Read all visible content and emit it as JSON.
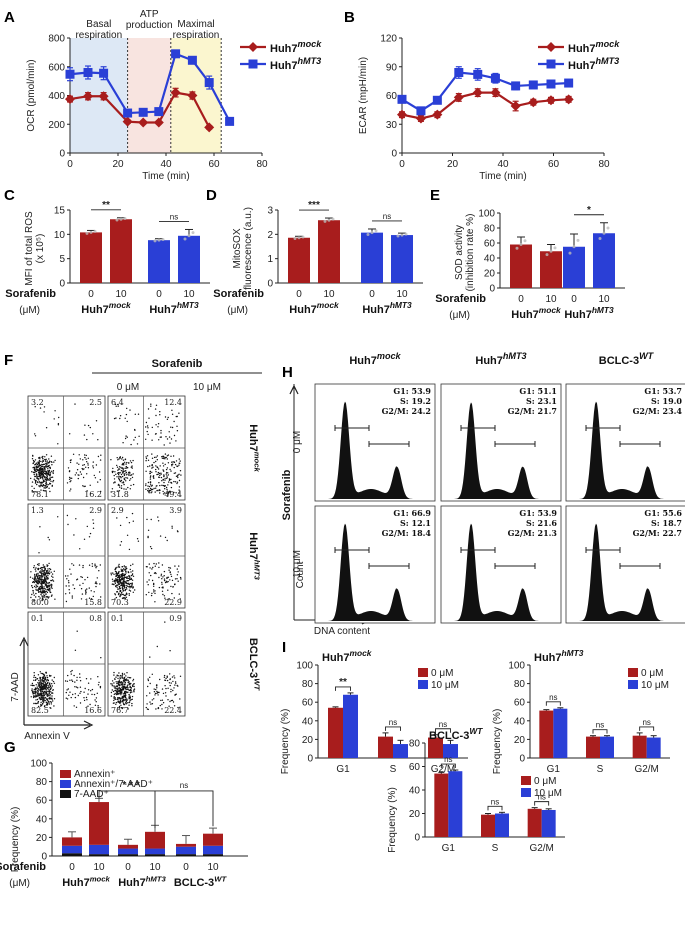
{
  "colors": {
    "mock": "#a81d1d",
    "hmt3": "#2a3fd6",
    "bclc": "#111111",
    "basal_bg": "#dde8f5",
    "atp_bg": "#f8e4e0",
    "max_bg": "#fbf6cf"
  },
  "panel_labels": [
    "A",
    "B",
    "C",
    "D",
    "E",
    "F",
    "G",
    "H",
    "I"
  ],
  "groups": {
    "mock": {
      "base": "Huh7",
      "sup": "mock"
    },
    "hmt3": {
      "base": "Huh7",
      "sup": "hMT3"
    },
    "bclc": {
      "base": "BCLC-3",
      "sup": "WT"
    }
  },
  "common": {
    "sorafenib": "Sorafenib",
    "unit": "(μM)",
    "dose0": "0",
    "dose10": "10"
  },
  "chart_data": [
    {
      "id": "A",
      "type": "line",
      "xlabel": "Time (min)",
      "ylabel": "OCR (pmol/min)",
      "xlim": [
        0,
        80
      ],
      "ylim": [
        0,
        800
      ],
      "xticks": [
        0,
        20,
        40,
        60,
        80
      ],
      "yticks": [
        0,
        200,
        400,
        600,
        800
      ],
      "regions": [
        {
          "label": "Basal\nrespiration",
          "from": 0,
          "to": 24,
          "color": "basal_bg"
        },
        {
          "label": "ATP\nproduction",
          "from": 24,
          "to": 42,
          "color": "atp_bg"
        },
        {
          "label": "Maximal\nrespiration",
          "from": 42,
          "to": 63,
          "color": "max_bg"
        }
      ],
      "series": [
        {
          "name": "mock",
          "x": [
            0,
            7.5,
            14,
            24,
            30.5,
            37,
            44,
            51,
            58
          ],
          "y": [
            375,
            395,
            395,
            218,
            212,
            212,
            420,
            400,
            178
          ],
          "err": [
            20,
            25,
            25,
            12,
            10,
            10,
            30,
            25,
            12
          ]
        },
        {
          "name": "hmt3",
          "x": [
            0,
            7.5,
            14,
            24,
            30.5,
            37,
            44,
            51,
            58,
            66.5
          ],
          "y": [
            548,
            560,
            555,
            278,
            283,
            288,
            690,
            645,
            490,
            220
          ],
          "err": [
            45,
            45,
            45,
            15,
            15,
            15,
            25,
            25,
            45,
            15
          ]
        }
      ]
    },
    {
      "id": "B",
      "type": "line",
      "xlabel": "Time (min)",
      "ylabel": "ECAR (mpH/min)",
      "xlim": [
        0,
        80
      ],
      "ylim": [
        0,
        120
      ],
      "xticks": [
        0,
        20,
        40,
        60,
        80
      ],
      "yticks": [
        0,
        30,
        60,
        90,
        120
      ],
      "series": [
        {
          "name": "mock",
          "x": [
            0,
            7.5,
            14,
            22.5,
            30,
            37,
            45,
            52,
            59,
            66
          ],
          "y": [
            40,
            36,
            40,
            58,
            63,
            63,
            49,
            53,
            55,
            56
          ],
          "err": [
            3,
            3,
            3,
            4,
            4,
            4,
            5,
            3,
            3,
            3
          ]
        },
        {
          "name": "hmt3",
          "x": [
            0,
            7.5,
            14,
            22.5,
            30,
            37,
            45,
            52,
            59,
            66
          ],
          "y": [
            56,
            44,
            55,
            84,
            82,
            78,
            70,
            71,
            72,
            73
          ],
          "err": [
            3,
            3,
            3,
            6,
            6,
            5,
            4,
            3,
            3,
            3
          ]
        }
      ]
    },
    {
      "id": "C",
      "type": "bar",
      "ylabel": "MFI of total ROS\n(x 10⁵)",
      "ylim": [
        0,
        15
      ],
      "yticks": [
        0,
        5,
        10,
        15
      ],
      "values": [
        10.4,
        13.1,
        8.8,
        9.7
      ],
      "errors": [
        0.4,
        0.3,
        0.3,
        1.3
      ],
      "sig": [
        {
          "text": "**",
          "pair": [
            0,
            1
          ]
        },
        {
          "text": "ns",
          "pair": [
            2,
            3
          ]
        }
      ]
    },
    {
      "id": "D",
      "type": "bar",
      "ylabel": "MitoSOX\nfluorescence (a.u.)",
      "ylim": [
        0,
        3
      ],
      "yticks": [
        0,
        1,
        2,
        3
      ],
      "values": [
        1.86,
        2.58,
        2.07,
        1.97
      ],
      "errors": [
        0.06,
        0.09,
        0.15,
        0.08
      ],
      "sig": [
        {
          "text": "***",
          "pair": [
            0,
            1
          ]
        },
        {
          "text": "ns",
          "pair": [
            2,
            3
          ]
        }
      ]
    },
    {
      "id": "E",
      "type": "bar",
      "ylabel": "SOD activity\n(inhibition rate %)",
      "ylim": [
        0,
        100
      ],
      "yticks": [
        0,
        20,
        40,
        60,
        80,
        100
      ],
      "values": [
        58,
        49,
        55,
        73
      ],
      "errors": [
        10,
        9,
        17,
        14
      ],
      "sig": [
        {
          "text": "*",
          "pair": [
            2,
            3
          ]
        }
      ]
    },
    {
      "id": "G",
      "type": "stacked-bar",
      "ylabel": "Frequency (%)",
      "ylim": [
        0,
        100
      ],
      "yticks": [
        0,
        20,
        40,
        60,
        80,
        100
      ],
      "legend": [
        "Annexin⁺",
        "Annexin⁺/7-AAD⁺",
        "7-AAD⁺"
      ],
      "legend_colors": [
        "#a81d1d",
        "#2a3fd6",
        "#111111"
      ],
      "bars": [
        {
          "s1": 9,
          "s2": 8,
          "s3": 3,
          "err": 6
        },
        {
          "s1": 46,
          "s2": 10,
          "s3": 2,
          "err": 4
        },
        {
          "s1": 4,
          "s2": 6,
          "s3": 2,
          "err": 6
        },
        {
          "s1": 18,
          "s2": 6,
          "s3": 2,
          "err": 7
        },
        {
          "s1": 3,
          "s2": 8,
          "s3": 2,
          "err": 9
        },
        {
          "s1": 13,
          "s2": 9,
          "s3": 2,
          "err": 6
        }
      ],
      "sig": [
        {
          "text": "* * *",
          "pair": [
            1,
            3
          ]
        },
        {
          "text": "ns",
          "pair": [
            3,
            5
          ]
        }
      ]
    },
    {
      "id": "I1",
      "type": "grouped-bar",
      "title_group": "mock",
      "ylabel": "Frequency (%)",
      "ylim": [
        0,
        100
      ],
      "yticks": [
        0,
        20,
        40,
        60,
        80,
        100
      ],
      "categories": [
        "G1",
        "S",
        "G2/M"
      ],
      "legend": [
        "0 μM",
        "10 μM"
      ],
      "series": [
        {
          "name": "0 μM",
          "values": [
            54,
            23,
            22
          ],
          "err": [
            1,
            4,
            3
          ]
        },
        {
          "name": "10 μM",
          "values": [
            68,
            15,
            15
          ],
          "err": [
            2,
            4,
            4
          ]
        }
      ],
      "sig": [
        "**",
        "ns",
        "ns"
      ]
    },
    {
      "id": "I2",
      "type": "grouped-bar",
      "title_group": "hmt3",
      "ylabel": "Frequency (%)",
      "ylim": [
        0,
        100
      ],
      "yticks": [
        0,
        20,
        40,
        60,
        80,
        100
      ],
      "categories": [
        "G1",
        "S",
        "G2/M"
      ],
      "legend": [
        "0 μM",
        "10 μM"
      ],
      "series": [
        {
          "name": "0 μM",
          "values": [
            51,
            23,
            24
          ],
          "err": [
            1,
            1,
            3
          ]
        },
        {
          "name": "10 μM",
          "values": [
            53,
            23,
            22
          ],
          "err": [
            1,
            1,
            2
          ]
        }
      ],
      "sig": [
        "ns",
        "ns",
        "ns"
      ]
    },
    {
      "id": "I3",
      "type": "grouped-bar",
      "title_group": "bclc",
      "ylabel": "Frequency (%)",
      "ylim": [
        0,
        80
      ],
      "yticks": [
        0,
        20,
        40,
        60,
        80
      ],
      "categories": [
        "G1",
        "S",
        "G2/M"
      ],
      "legend": [
        "0 μM",
        "10 μM"
      ],
      "series": [
        {
          "name": "0 μM",
          "values": [
            54,
            19,
            24
          ],
          "err": [
            1,
            1,
            1
          ]
        },
        {
          "name": "10 μM",
          "values": [
            56,
            20,
            23
          ],
          "err": [
            1,
            1,
            1
          ]
        }
      ],
      "sig": [
        "ns",
        "ns",
        "ns"
      ]
    }
  ],
  "flow": {
    "title": "Sorafenib",
    "cols": [
      "0 μM",
      "10 μM"
    ],
    "xaxis": "Annexin V",
    "yaxis": "7-AAD",
    "rows": [
      {
        "group": "mock",
        "plots": [
          {
            "ul": "3.2",
            "ur": "2.5",
            "ll": "78.1",
            "lr": "16.2"
          },
          {
            "ul": "6.4",
            "ur": "12.4",
            "ll": "31.8",
            "lr": "49.4"
          }
        ]
      },
      {
        "group": "hmt3",
        "plots": [
          {
            "ul": "1.3",
            "ur": "2.9",
            "ll": "80.0",
            "lr": "15.8"
          },
          {
            "ul": "2.9",
            "ur": "3.9",
            "ll": "70.3",
            "lr": "22.9"
          }
        ]
      },
      {
        "group": "bclc",
        "plots": [
          {
            "ul": "0.1",
            "ur": "0.8",
            "ll": "82.5",
            "lr": "16.6"
          },
          {
            "ul": "0.1",
            "ur": "0.9",
            "ll": "76.7",
            "lr": "22.4"
          }
        ]
      }
    ]
  },
  "cycle": {
    "row_label": "Sorafenib",
    "xaxis": "DNA content",
    "yaxis": "Count",
    "doses": [
      "0 μM",
      "10 μM"
    ],
    "cols": [
      "mock",
      "hmt3",
      "bclc"
    ],
    "stats": [
      [
        {
          "g1": "G1: 53.9",
          "s": "S: 19.2",
          "g2": "G2/M: 24.2"
        },
        {
          "g1": "G1: 51.1",
          "s": "S: 23.1",
          "g2": "G2/M: 21.7"
        },
        {
          "g1": "G1: 53.7",
          "s": "S: 19.0",
          "g2": "G2/M: 23.4"
        }
      ],
      [
        {
          "g1": "G1: 66.9",
          "s": "S: 12.1",
          "g2": "G2/M: 18.4"
        },
        {
          "g1": "G1: 53.9",
          "s": "S: 21.6",
          "g2": "G2/M: 21.3"
        },
        {
          "g1": "G1: 55.6",
          "s": "S: 18.7",
          "g2": "G2/M: 22.7"
        }
      ]
    ]
  }
}
